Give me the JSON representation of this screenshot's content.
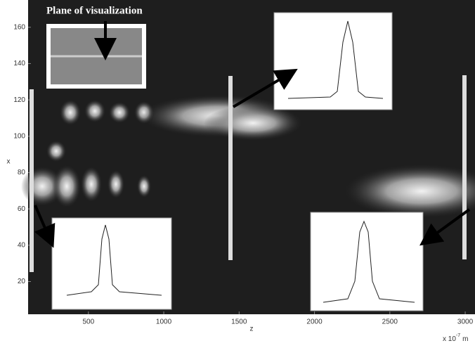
{
  "chart_data": {
    "type": "heatmap",
    "annotation": "Plane of visualization",
    "x_label": "z",
    "y_label": "x",
    "x_unit": {
      "prefix": "x 10",
      "exponent": "-7",
      "suffix": "m"
    },
    "xlim": [
      100,
      3065
    ],
    "xticks": [
      500,
      1000,
      1500,
      2000,
      2500,
      3000
    ],
    "ylim": [
      2,
      175
    ],
    "yticks": [
      20,
      40,
      60,
      80,
      100,
      120,
      140,
      160
    ],
    "background": "#1e1e1e"
  }
}
